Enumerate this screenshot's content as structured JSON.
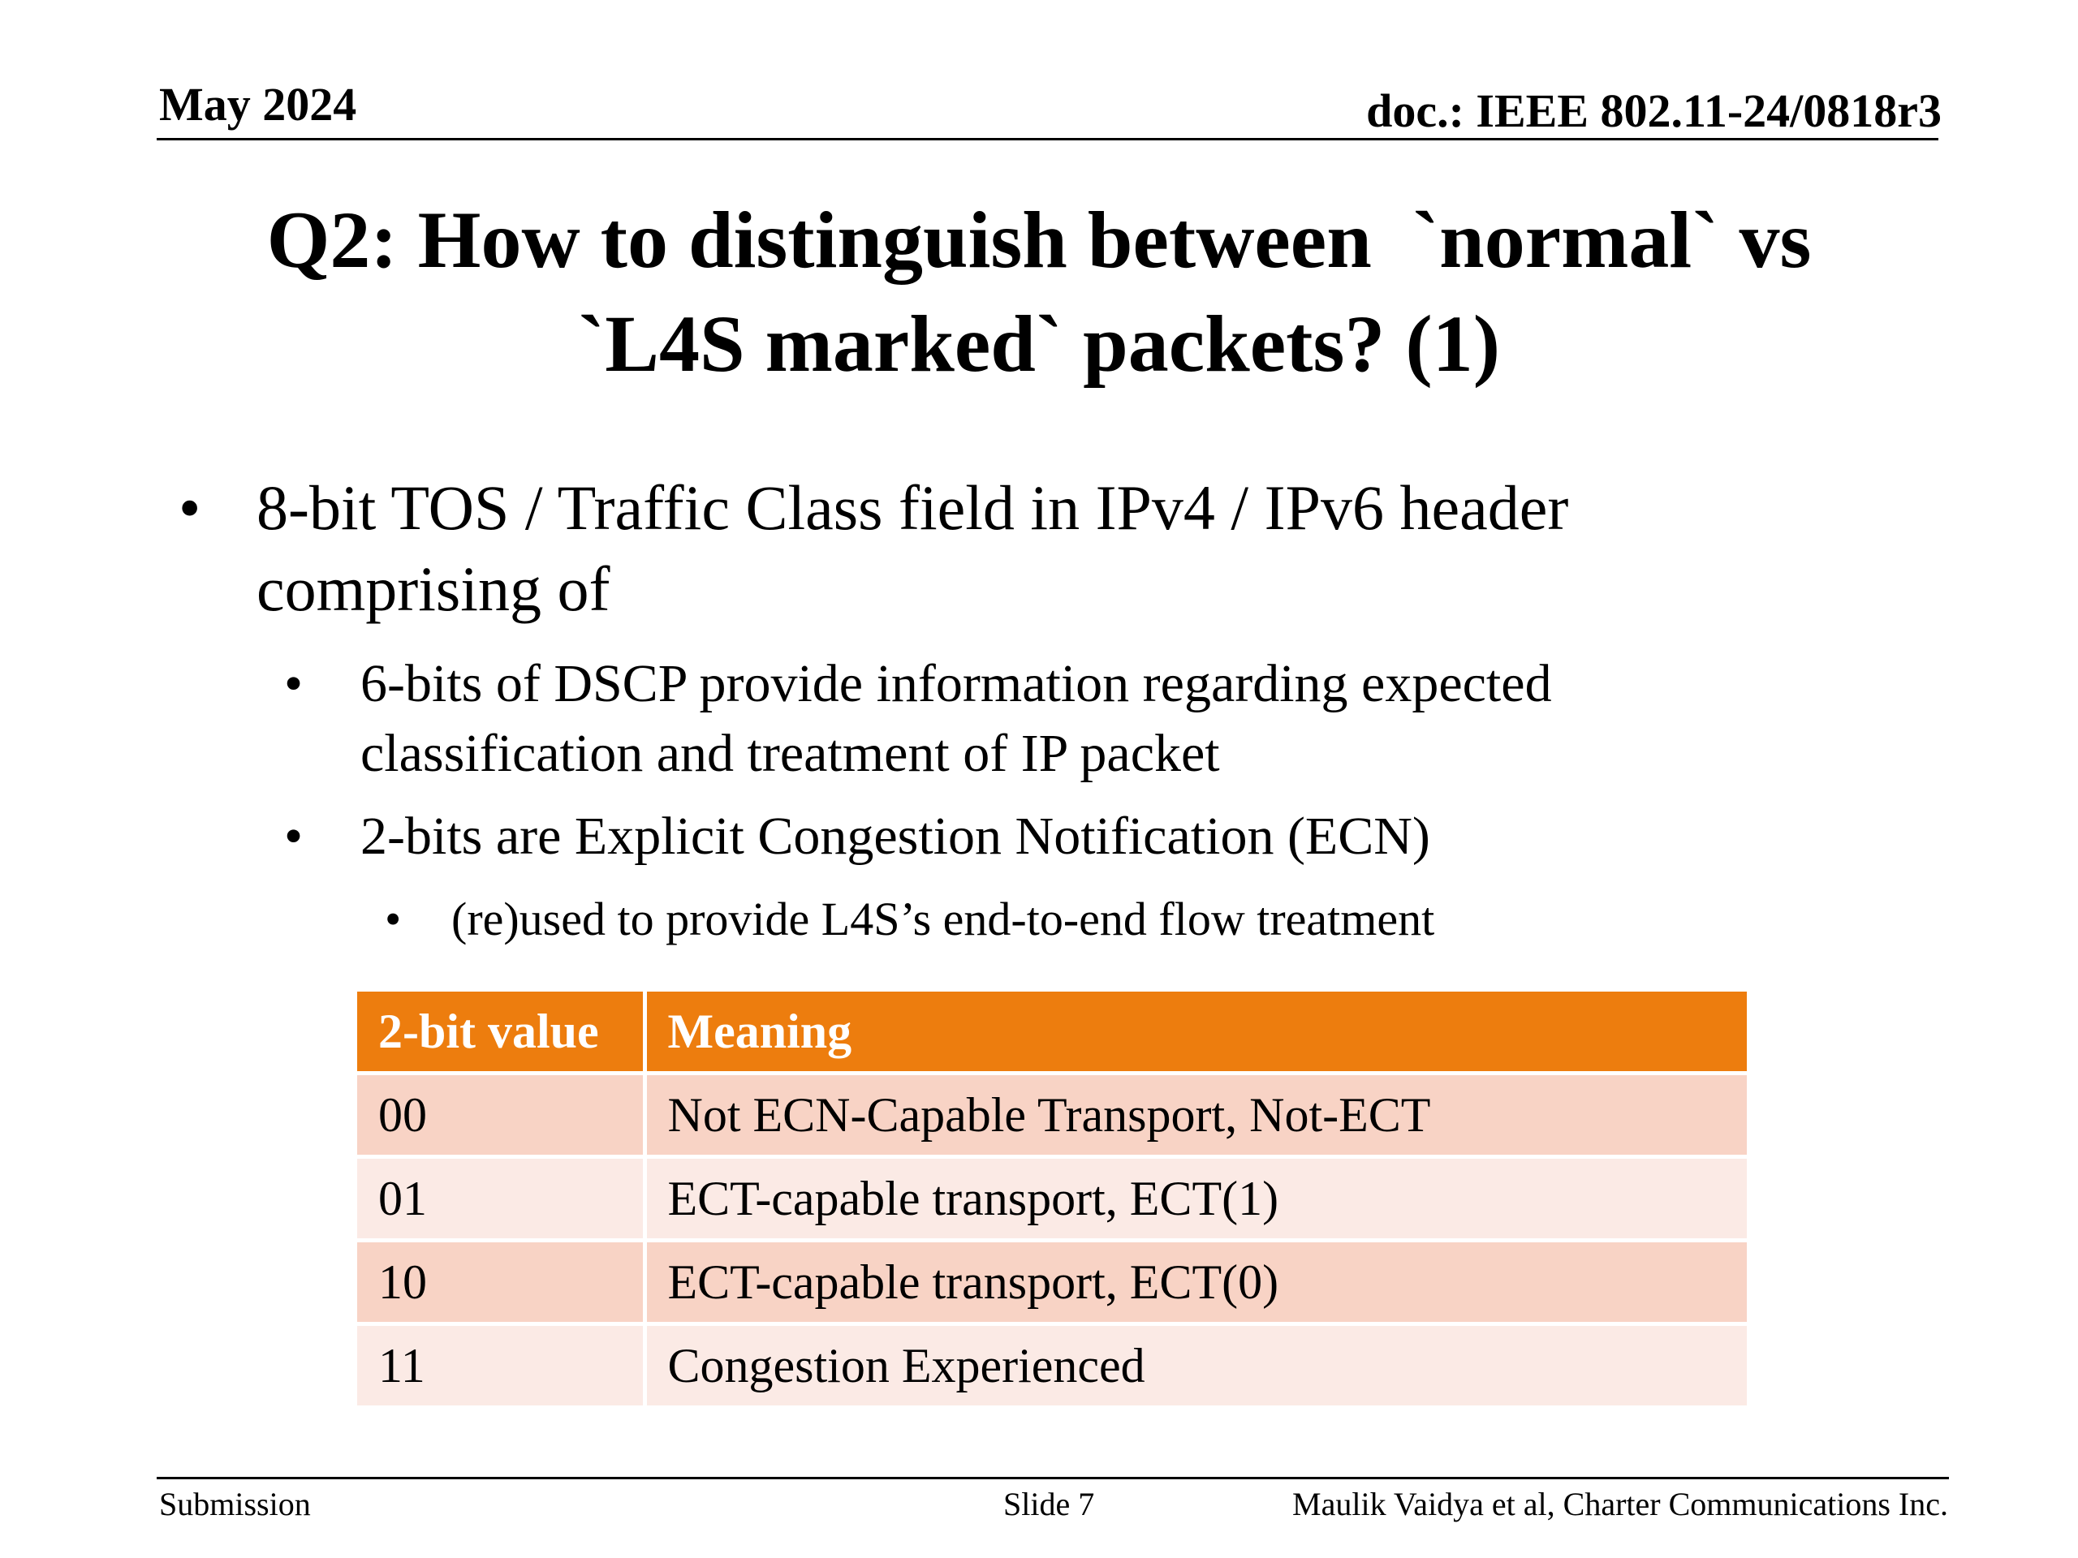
{
  "header": {
    "date": "May 2024",
    "doc": "doc.: IEEE 802.11-24/0818r3"
  },
  "title": {
    "line1": "Q2: How to distinguish between  `normal` vs",
    "line2": "`L4S marked` packets? (1)"
  },
  "bullets": {
    "l1": {
      "marker": "•",
      "line1": "8-bit TOS / Traffic Class field in IPv4 / IPv6 header",
      "line2": "comprising of"
    },
    "l2a": {
      "marker": "•",
      "line1": "6-bits of DSCP provide information regarding expected",
      "line2": "classification and treatment of IP packet"
    },
    "l2b": {
      "marker": "•",
      "text": "2-bits are Explicit Congestion Notification (ECN)"
    },
    "l3": {
      "marker": "•",
      "text": "(re)used to provide L4S’s end-to-end flow treatment"
    }
  },
  "table": {
    "header_color": "#ED7D0E",
    "row_color_odd": "#F8D3C5",
    "row_color_even": "#FBEAE5",
    "columns": [
      "2-bit value",
      "Meaning"
    ],
    "rows": [
      [
        "00",
        "Not ECN-Capable Transport, Not-ECT"
      ],
      [
        "01",
        "ECT-capable transport, ECT(1)"
      ],
      [
        "10",
        "ECT-capable transport, ECT(0)"
      ],
      [
        "11",
        "Congestion Experienced"
      ]
    ]
  },
  "footer": {
    "left": "Submission",
    "center": "Slide 7",
    "right": "Maulik Vaidya et al, Charter Communications Inc."
  }
}
